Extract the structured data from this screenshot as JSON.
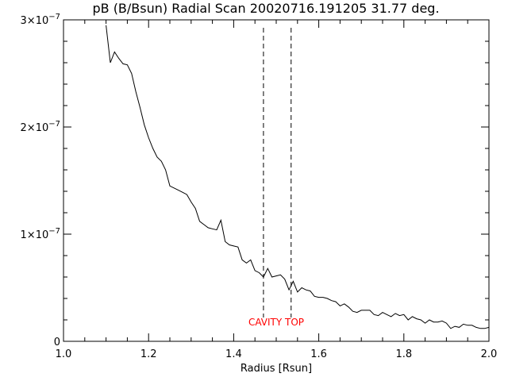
{
  "chart_data": {
    "type": "line",
    "title": "pB (B/Bsun) Radial Scan 20020716.191205 31.77 deg.",
    "xlabel": "Radius [Rsun]",
    "ylabel": "",
    "xlim": [
      1.0,
      2.0
    ],
    "ylim": [
      0,
      3e-07
    ],
    "grid": false,
    "x_ticks": [
      {
        "value": 1.0,
        "label": "1.0"
      },
      {
        "value": 1.2,
        "label": "1.2"
      },
      {
        "value": 1.4,
        "label": "1.4"
      },
      {
        "value": 1.6,
        "label": "1.6"
      },
      {
        "value": 1.8,
        "label": "1.8"
      },
      {
        "value": 2.0,
        "label": "2.0"
      }
    ],
    "y_ticks": [
      {
        "value": 0,
        "label": "0"
      },
      {
        "value": 1e-07,
        "label": "1×10",
        "exp": "−7"
      },
      {
        "value": 2e-07,
        "label": "2×10",
        "exp": "−7"
      },
      {
        "value": 3e-07,
        "label": "3×10",
        "exp": "−7"
      }
    ],
    "series": [
      {
        "color": "#000000",
        "points": [
          [
            1.1,
            2.95e-07
          ],
          [
            1.11,
            2.6e-07
          ],
          [
            1.12,
            2.7e-07
          ],
          [
            1.13,
            2.64e-07
          ],
          [
            1.14,
            2.59e-07
          ],
          [
            1.15,
            2.58e-07
          ],
          [
            1.16,
            2.5e-07
          ],
          [
            1.17,
            2.33e-07
          ],
          [
            1.18,
            2.18e-07
          ],
          [
            1.19,
            2.02e-07
          ],
          [
            1.2,
            1.9e-07
          ],
          [
            1.21,
            1.8e-07
          ],
          [
            1.22,
            1.72e-07
          ],
          [
            1.23,
            1.68e-07
          ],
          [
            1.24,
            1.6e-07
          ],
          [
            1.25,
            1.45e-07
          ],
          [
            1.26,
            1.43e-07
          ],
          [
            1.27,
            1.41e-07
          ],
          [
            1.28,
            1.39e-07
          ],
          [
            1.29,
            1.37e-07
          ],
          [
            1.3,
            1.3e-07
          ],
          [
            1.31,
            1.24e-07
          ],
          [
            1.32,
            1.12e-07
          ],
          [
            1.33,
            1.09e-07
          ],
          [
            1.34,
            1.06e-07
          ],
          [
            1.35,
            1.05e-07
          ],
          [
            1.36,
            1.04e-07
          ],
          [
            1.37,
            1.13e-07
          ],
          [
            1.38,
            9.3e-08
          ],
          [
            1.39,
            9e-08
          ],
          [
            1.4,
            8.9e-08
          ],
          [
            1.41,
            8.8e-08
          ],
          [
            1.42,
            7.6e-08
          ],
          [
            1.43,
            7.3e-08
          ],
          [
            1.44,
            7.6e-08
          ],
          [
            1.45,
            6.6e-08
          ],
          [
            1.46,
            6.4e-08
          ],
          [
            1.47,
            6e-08
          ],
          [
            1.48,
            6.8e-08
          ],
          [
            1.49,
            6e-08
          ],
          [
            1.5,
            6.1e-08
          ],
          [
            1.51,
            6.2e-08
          ],
          [
            1.52,
            5.8e-08
          ],
          [
            1.53,
            4.8e-08
          ],
          [
            1.54,
            5.6e-08
          ],
          [
            1.55,
            4.6e-08
          ],
          [
            1.56,
            5e-08
          ],
          [
            1.57,
            4.8e-08
          ],
          [
            1.58,
            4.7e-08
          ],
          [
            1.59,
            4.2e-08
          ],
          [
            1.6,
            4.1e-08
          ],
          [
            1.61,
            4.1e-08
          ],
          [
            1.62,
            4e-08
          ],
          [
            1.63,
            3.8e-08
          ],
          [
            1.64,
            3.7e-08
          ],
          [
            1.65,
            3.3e-08
          ],
          [
            1.66,
            3.5e-08
          ],
          [
            1.67,
            3.2e-08
          ],
          [
            1.68,
            2.8e-08
          ],
          [
            1.69,
            2.7e-08
          ],
          [
            1.7,
            2.9e-08
          ],
          [
            1.71,
            2.9e-08
          ],
          [
            1.72,
            2.9e-08
          ],
          [
            1.73,
            2.5e-08
          ],
          [
            1.74,
            2.4e-08
          ],
          [
            1.75,
            2.7e-08
          ],
          [
            1.76,
            2.5e-08
          ],
          [
            1.77,
            2.3e-08
          ],
          [
            1.78,
            2.6e-08
          ],
          [
            1.79,
            2.4e-08
          ],
          [
            1.8,
            2.5e-08
          ],
          [
            1.81,
            2e-08
          ],
          [
            1.82,
            2.3e-08
          ],
          [
            1.83,
            2.1e-08
          ],
          [
            1.84,
            2e-08
          ],
          [
            1.85,
            1.7e-08
          ],
          [
            1.86,
            2e-08
          ],
          [
            1.87,
            1.8e-08
          ],
          [
            1.88,
            1.8e-08
          ],
          [
            1.89,
            1.9e-08
          ],
          [
            1.9,
            1.7e-08
          ],
          [
            1.91,
            1.2e-08
          ],
          [
            1.92,
            1.4e-08
          ],
          [
            1.93,
            1.3e-08
          ],
          [
            1.94,
            1.6e-08
          ],
          [
            1.95,
            1.5e-08
          ],
          [
            1.96,
            1.5e-08
          ],
          [
            1.97,
            1.3e-08
          ],
          [
            1.98,
            1.2e-08
          ],
          [
            1.99,
            1.2e-08
          ],
          [
            2.0,
            1.3e-08
          ]
        ]
      }
    ],
    "markers": [
      {
        "x": 1.47,
        "style": "dashed"
      },
      {
        "x": 1.535,
        "style": "dashed"
      }
    ],
    "annotation": {
      "text": "CAVITY TOP",
      "x": 1.5,
      "color": "#ff0000"
    }
  }
}
